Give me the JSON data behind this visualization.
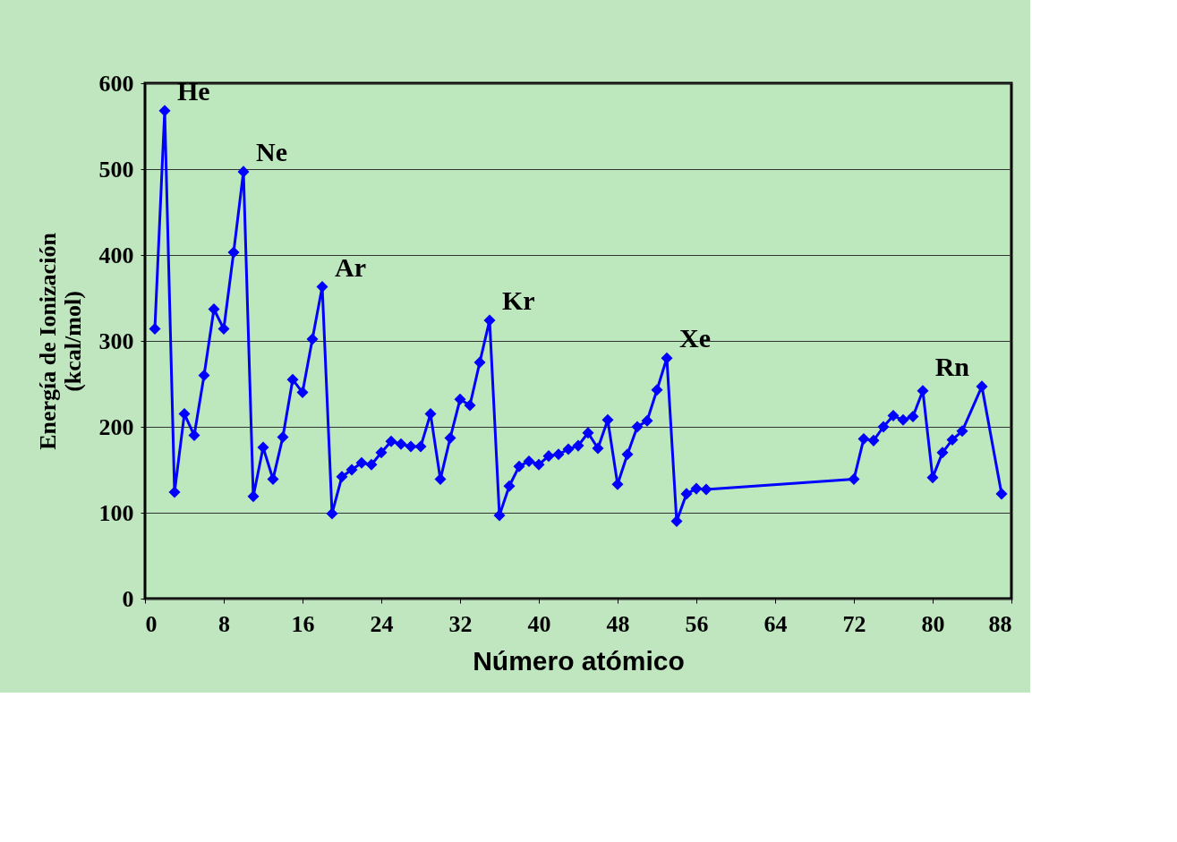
{
  "chart_data": {
    "type": "line",
    "xlabel": "Número atómico",
    "ylabel": "Energía de Ionización\n(kcal/mol)",
    "x": [
      1,
      2,
      3,
      4,
      5,
      6,
      7,
      8,
      9,
      10,
      11,
      12,
      13,
      14,
      15,
      16,
      17,
      18,
      19,
      20,
      21,
      22,
      23,
      24,
      25,
      26,
      27,
      28,
      29,
      30,
      31,
      32,
      33,
      34,
      35,
      36,
      37,
      38,
      39,
      40,
      41,
      42,
      43,
      44,
      45,
      46,
      47,
      48,
      49,
      50,
      51,
      52,
      53,
      54,
      55,
      56,
      57,
      72,
      73,
      74,
      75,
      76,
      77,
      78,
      79,
      80,
      81,
      82,
      83,
      85,
      87
    ],
    "series": [
      {
        "color": "#0000ff",
        "values": [
          314,
          568,
          124,
          215,
          190,
          260,
          337,
          314,
          403,
          497,
          119,
          176,
          139,
          188,
          255,
          240,
          302,
          363,
          99,
          142,
          150,
          158,
          156,
          170,
          183,
          180,
          177,
          177,
          215,
          139,
          187,
          232,
          225,
          275,
          324,
          97,
          131,
          154,
          160,
          156,
          166,
          168,
          174,
          178,
          193,
          175,
          208,
          133,
          168,
          200,
          207,
          243,
          280,
          90,
          122,
          128,
          127,
          139,
          186,
          184,
          200,
          213,
          208,
          212,
          242,
          141,
          170,
          185,
          195,
          247,
          122
        ]
      }
    ],
    "xlim": [
      0,
      88
    ],
    "xticks": [
      0,
      8,
      16,
      24,
      32,
      40,
      48,
      56,
      64,
      72,
      80,
      88
    ],
    "ylim": [
      0,
      600
    ],
    "yticks": [
      0,
      100,
      200,
      300,
      400,
      500,
      600
    ],
    "grid": "y",
    "marker": "diamond",
    "line_style": "solid",
    "annotations": [
      {
        "text": "He",
        "x": 2,
        "y": 568
      },
      {
        "text": "Ne",
        "x": 10,
        "y": 497
      },
      {
        "text": "Ar",
        "x": 18,
        "y": 363
      },
      {
        "text": "Kr",
        "x": 35,
        "y": 324
      },
      {
        "text": "Xe",
        "x": 53,
        "y": 280
      },
      {
        "text": "Rn",
        "x": 85,
        "y": 247
      }
    ]
  }
}
